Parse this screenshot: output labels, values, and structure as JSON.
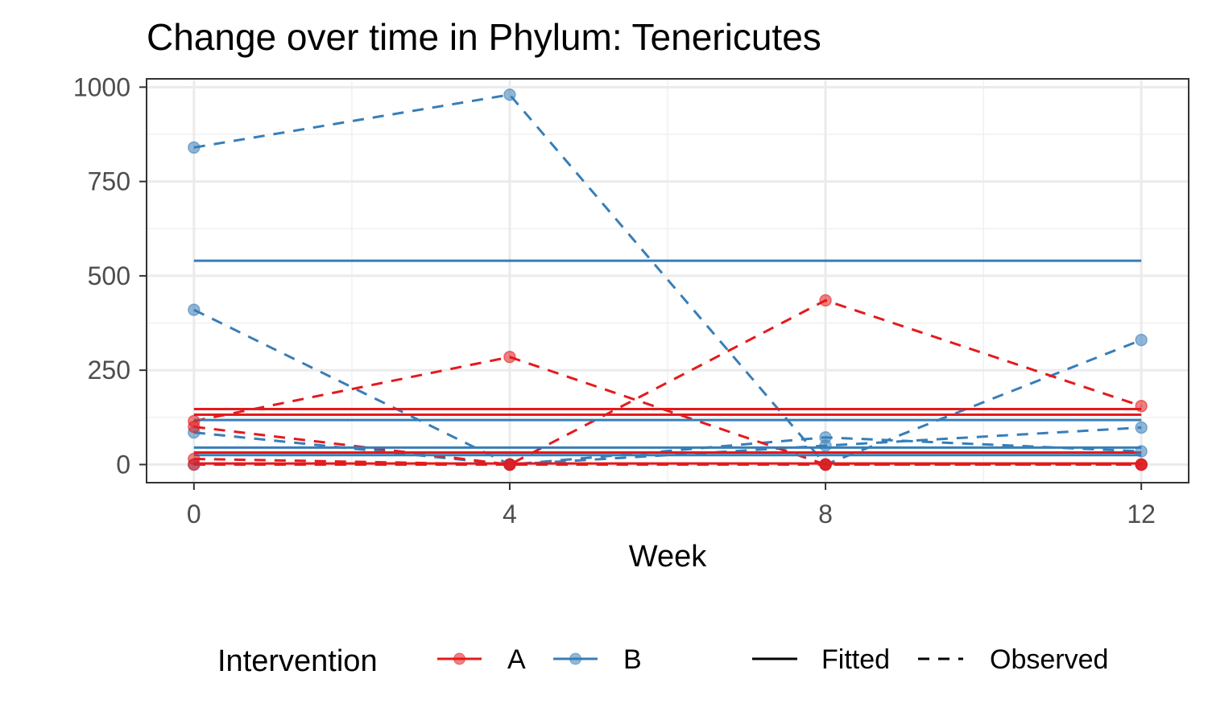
{
  "chart_data": {
    "type": "line",
    "title": "Change over time in Phylum: Tenericutes",
    "xlabel": "Week",
    "ylabel": "",
    "x_ticks": [
      0,
      4,
      8,
      12
    ],
    "y_ticks": [
      0,
      250,
      500,
      750,
      1000
    ],
    "xlim": [
      -0.6,
      12.6
    ],
    "ylim": [
      -48,
      1022
    ],
    "grid": true,
    "legend": {
      "position": "bottom",
      "color_title": "Intervention",
      "color_items": [
        {
          "label": "A",
          "color": "#E41A1C"
        },
        {
          "label": "B",
          "color": "#377EB8"
        }
      ],
      "linetype_items": [
        {
          "label": "Fitted",
          "style": "solid"
        },
        {
          "label": "Observed",
          "style": "dashed"
        }
      ]
    },
    "series": [
      {
        "group": "B",
        "kind": "observed",
        "x": [
          0,
          4,
          8,
          12
        ],
        "y": [
          840,
          980,
          0,
          330
        ]
      },
      {
        "group": "B",
        "kind": "observed",
        "x": [
          0,
          4,
          8,
          12
        ],
        "y": [
          410,
          0,
          72,
          35
        ]
      },
      {
        "group": "B",
        "kind": "observed",
        "x": [
          0,
          4,
          8,
          12
        ],
        "y": [
          85,
          0,
          50,
          98
        ]
      },
      {
        "group": "B",
        "kind": "observed",
        "x": [
          0,
          4,
          8,
          12
        ],
        "y": [
          0,
          0,
          0,
          0
        ]
      },
      {
        "group": "A",
        "kind": "observed",
        "x": [
          0,
          4,
          8,
          12
        ],
        "y": [
          115,
          285,
          0,
          0
        ]
      },
      {
        "group": "A",
        "kind": "observed",
        "x": [
          0,
          4,
          8,
          12
        ],
        "y": [
          100,
          0,
          435,
          155
        ]
      },
      {
        "group": "A",
        "kind": "observed",
        "x": [
          0,
          4,
          8,
          12
        ],
        "y": [
          15,
          0,
          0,
          0
        ]
      },
      {
        "group": "A",
        "kind": "observed",
        "x": [
          0,
          4,
          8,
          12
        ],
        "y": [
          0,
          0,
          0,
          0
        ]
      },
      {
        "group": "B",
        "kind": "fitted",
        "x": [
          0,
          12
        ],
        "y": [
          540,
          540
        ]
      },
      {
        "group": "B",
        "kind": "fitted",
        "x": [
          0,
          12
        ],
        "y": [
          118,
          118
        ]
      },
      {
        "group": "B",
        "kind": "fitted",
        "x": [
          0,
          12
        ],
        "y": [
          45,
          45
        ]
      },
      {
        "group": "B",
        "kind": "fitted",
        "x": [
          0,
          12
        ],
        "y": [
          25,
          25
        ]
      },
      {
        "group": "A",
        "kind": "fitted",
        "x": [
          0,
          12
        ],
        "y": [
          147,
          147
        ]
      },
      {
        "group": "A",
        "kind": "fitted",
        "x": [
          0,
          12
        ],
        "y": [
          132,
          132
        ]
      },
      {
        "group": "A",
        "kind": "fitted",
        "x": [
          0,
          12
        ],
        "y": [
          32,
          32
        ]
      },
      {
        "group": "A",
        "kind": "fitted",
        "x": [
          0,
          12
        ],
        "y": [
          3,
          3
        ]
      }
    ]
  }
}
